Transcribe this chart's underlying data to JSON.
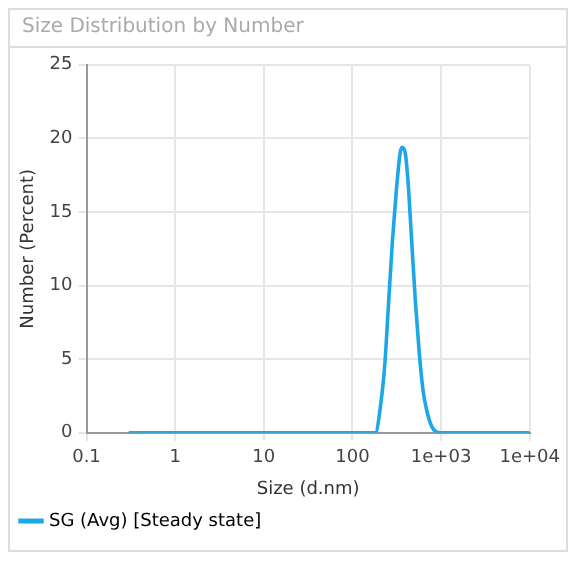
{
  "chart_data": {
    "type": "line",
    "title": "Size Distribution by Number",
    "xlabel": "Size (d.nm)",
    "ylabel": "Number (Percent)",
    "log": "x",
    "xlim": [
      0.1,
      10000
    ],
    "xticks": [
      0.1,
      1,
      10,
      100,
      {
        "value": 1000,
        "label": "1e+03"
      },
      {
        "value": 10000,
        "label": "1e+04"
      }
    ],
    "ylim": [
      0,
      25
    ],
    "yticks": [
      0,
      5,
      10,
      15,
      20,
      25
    ],
    "grid": true,
    "legend": "bottom left",
    "marker": "none",
    "line_style": "solid",
    "series": [
      {
        "name": "SG (Avg) [Steady state]",
        "color": "#1ea7e6",
        "x": [
          0.3,
          10,
          100,
          181,
          210,
          232,
          256,
          283,
          313,
          345,
          362,
          394,
          421,
          465,
          513,
          566,
          625,
          690,
          789,
          962,
          10000
        ],
        "values": [
          0,
          0,
          0,
          0,
          2.1,
          4.7,
          8.9,
          13.1,
          16.5,
          19,
          19.4,
          19,
          17.3,
          13.1,
          8.9,
          5.5,
          2.9,
          1.5,
          0.4,
          0,
          0
        ]
      }
    ]
  }
}
